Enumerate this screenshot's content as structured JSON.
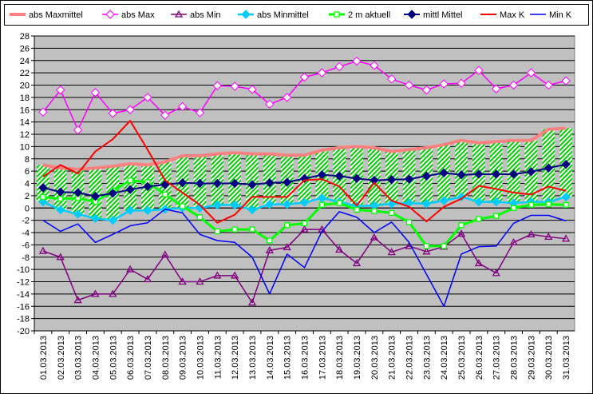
{
  "chart_data": {
    "type": "line",
    "categories": [
      "01.03.2013",
      "02.03.2013",
      "03.03.2013",
      "04.03.2013",
      "05.03.2013",
      "06.03.2013",
      "07.03.2013",
      "08.03.2013",
      "09.03.2013",
      "10.03.2013",
      "11.03.2013",
      "12.03.2013",
      "13.03.2013",
      "14.03.2013",
      "15.03.2013",
      "16.03.2013",
      "17.03.2013",
      "18.03.2013",
      "19.03.2013",
      "20.03.2013",
      "21.03.2013",
      "22.03.2013",
      "23.03.2013",
      "24.03.2013",
      "25.03.2013",
      "26.03.2013",
      "27.03.2013",
      "28.03.2013",
      "29.03.2013",
      "30.03.2013",
      "31.03.2013"
    ],
    "ylim": [
      -20,
      28
    ],
    "yticks": [
      -20,
      -18,
      -16,
      -14,
      -12,
      -10,
      -8,
      -6,
      -4,
      -2,
      0,
      2,
      4,
      6,
      8,
      10,
      12,
      14,
      16,
      18,
      20,
      22,
      24,
      26,
      28
    ],
    "grid": true,
    "legend": "top",
    "band_color": "#00cc00",
    "series": [
      {
        "name": "abs Maxmittel",
        "color": "#ff8080",
        "marker": "none",
        "values": [
          7,
          6.5,
          6.3,
          6.5,
          6.8,
          7.2,
          7,
          7.5,
          8.5,
          8.5,
          8.8,
          9,
          8.8,
          8.8,
          8.6,
          8.6,
          9.4,
          9.8,
          10,
          9.8,
          9.2,
          9.5,
          9.8,
          10.3,
          11,
          10.6,
          10.8,
          11,
          11,
          12.8,
          13
        ]
      },
      {
        "name": "abs Max",
        "color": "#ff00ff",
        "marker": "diamond-open",
        "values": [
          15.6,
          19.2,
          12.7,
          18.8,
          15.4,
          16,
          18,
          15.1,
          16.5,
          15.5,
          19.9,
          19.8,
          19.3,
          16.9,
          18,
          21.3,
          22,
          23,
          23.9,
          23.2,
          21,
          20,
          19.2,
          20.2,
          20.3,
          22.4,
          19.4,
          20,
          22,
          20,
          20.7
        ]
      },
      {
        "name": "abs Min",
        "color": "#800080",
        "marker": "triangle-open",
        "values": [
          -7,
          -8,
          -15,
          -14,
          -14,
          -10,
          -11.6,
          -7.6,
          -12,
          -12,
          -11,
          -11,
          -15.4,
          -6.9,
          -6.4,
          -3.5,
          -3.5,
          -6.8,
          -9,
          -4.8,
          -7.2,
          -6.2,
          -7.1,
          -6.3,
          -4.2,
          -9,
          -10.6,
          -5.6,
          -4.3,
          -4.7,
          -5
        ]
      },
      {
        "name": "abs Minmittel",
        "color": "#00ccff",
        "marker": "diamond",
        "values": [
          1,
          -0.3,
          -1,
          -1.7,
          -2,
          -0.4,
          -0.4,
          -0.2,
          0,
          0,
          0.5,
          0.5,
          -0.3,
          0.6,
          0.6,
          0.9,
          1.6,
          1,
          0.3,
          0.4,
          0.7,
          0.8,
          0.7,
          1.2,
          1.8,
          1,
          1,
          0.8,
          1,
          1,
          1.8
        ]
      },
      {
        "name": "2 m aktuell",
        "color": "#00ff00",
        "marker": "square-open",
        "values": [
          1.8,
          1.5,
          1.6,
          1,
          2.8,
          4.5,
          4.2,
          2.2,
          0.3,
          -1.5,
          -3.8,
          -3.5,
          -3.5,
          -5.3,
          -2.8,
          -2.5,
          0.5,
          0.8,
          -0.3,
          -0.5,
          -0.8,
          -2.3,
          -6.2,
          -6.2,
          -2.8,
          -1.8,
          -1.3,
          0,
          0.5,
          0.6,
          0.5
        ]
      },
      {
        "name": "mittl Mittel",
        "color": "#000080",
        "marker": "diamond",
        "values": [
          3.3,
          2.6,
          2.5,
          1.9,
          2.4,
          3,
          3.5,
          3.8,
          4.1,
          4,
          4,
          4,
          3.8,
          4.1,
          4.2,
          4.8,
          5.4,
          5.2,
          4.8,
          4.5,
          4.6,
          4.7,
          5.2,
          5.7,
          5.4,
          5.5,
          5.5,
          5.5,
          5.9,
          6.5,
          7.1
        ]
      },
      {
        "name": "Max K",
        "color": "#ff0000",
        "marker": "none",
        "values": [
          5.1,
          7,
          5.6,
          9.2,
          11.2,
          14.2,
          9.5,
          4.5,
          2.5,
          0.5,
          -2.4,
          -1.1,
          1.8,
          1.8,
          1.8,
          4.5,
          4.7,
          3.5,
          0.4,
          4.1,
          1.2,
          0.2,
          -2.2,
          0.2,
          1.5,
          3.6,
          3.1,
          2.5,
          2.2,
          3.5,
          2.8
        ]
      },
      {
        "name": "Min K",
        "color": "#0000ff",
        "marker": "none",
        "values": [
          -2,
          -3.8,
          -2.6,
          -5.6,
          -4.3,
          -2.9,
          -2.4,
          -0.2,
          -0.8,
          -4.3,
          -5.3,
          -5.6,
          -8,
          -14,
          -7.5,
          -9.7,
          -3.8,
          -0.6,
          -1.5,
          -4,
          -2.3,
          -5.6,
          -10.8,
          -16,
          -7.5,
          -6.3,
          -6.2,
          -2.5,
          -1.2,
          -1.2,
          -2.1
        ]
      }
    ]
  }
}
